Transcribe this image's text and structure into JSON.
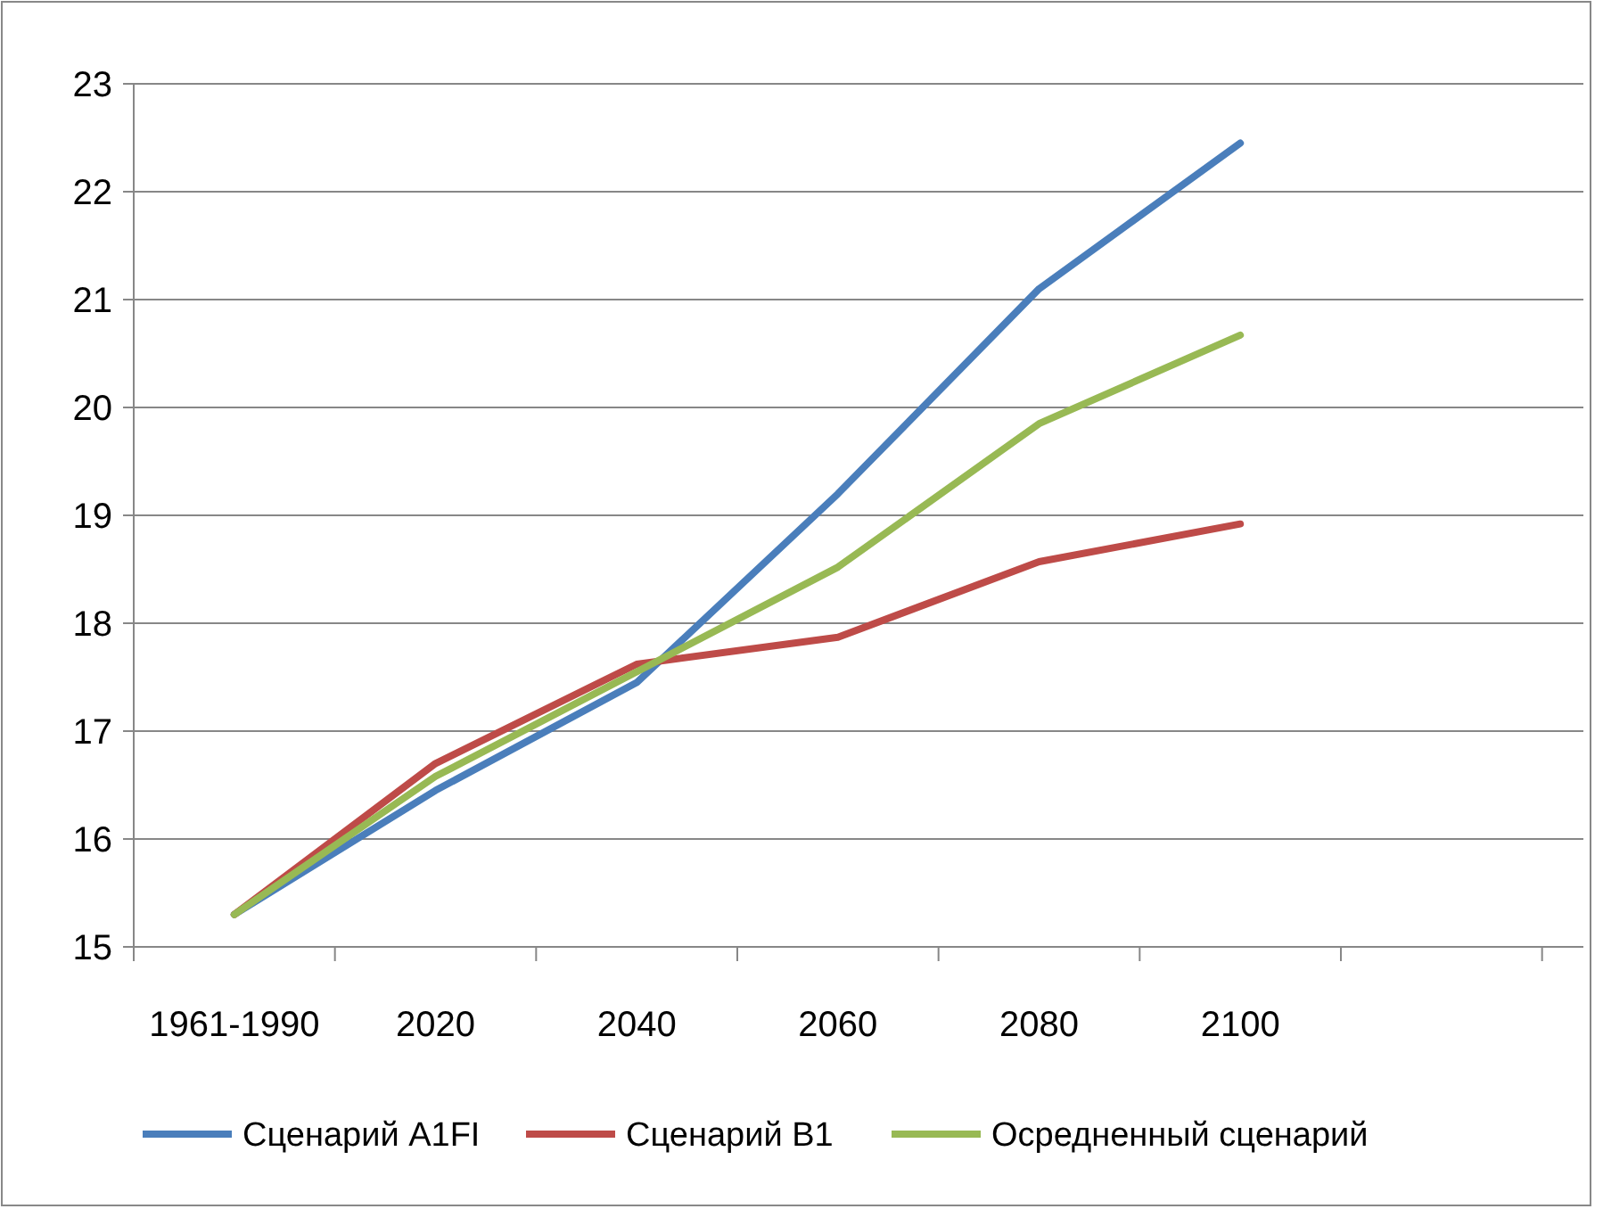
{
  "chart_data": {
    "type": "line",
    "categories": [
      "1961-1990",
      "2020",
      "2040",
      "2060",
      "2080",
      "2100"
    ],
    "series": [
      {
        "name": "Сценарий A1FI",
        "color": "#4a7ebb",
        "values": [
          15.3,
          16.45,
          17.45,
          19.2,
          21.1,
          22.45
        ]
      },
      {
        "name": "Сценарий B1",
        "color": "#be4b48",
        "values": [
          15.3,
          16.7,
          17.62,
          17.87,
          18.57,
          18.92
        ]
      },
      {
        "name": "Осредненный сценарий",
        "color": "#98b954",
        "values": [
          15.3,
          16.58,
          17.55,
          18.52,
          19.85,
          20.67
        ]
      }
    ],
    "ylim": [
      15,
      23
    ],
    "yticks": [
      15,
      16,
      17,
      18,
      19,
      20,
      21,
      22,
      23
    ],
    "grid": "y",
    "legend": "bottom",
    "marker": "none",
    "line_style": "solid"
  }
}
